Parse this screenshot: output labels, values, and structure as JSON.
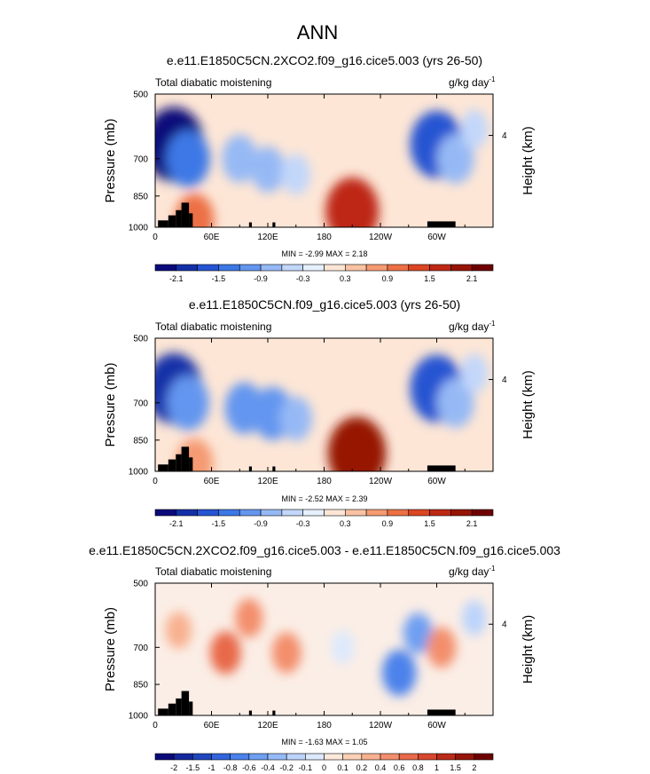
{
  "figure": {
    "title": "ANN"
  },
  "chart_data": [
    {
      "type": "heatmap",
      "panel": "top",
      "title": "e.e11.E1850C5CN.2XCO2.f09_g16.cice5.003 (yrs 26-50)",
      "left_label": "Total diabatic moistening",
      "units": "g/kg day",
      "units_exp": "-1",
      "ylabel": "Pressure (mb)",
      "ylabel_right": "Height (km)",
      "y_ticks": [
        "500",
        "700",
        "850",
        "1000"
      ],
      "y_right_ticks": [
        "4"
      ],
      "x_ticks": [
        "0",
        "60E",
        "120E",
        "180",
        "120W",
        "60W"
      ],
      "minmax": "MIN =  -2.99  MAX =  2.18",
      "colorbar_labels": [
        "-2.1",
        "-1.5",
        "-0.9",
        "-0.3",
        "0.3",
        "0.9",
        "1.5",
        "2.1"
      ],
      "colorbar_colors": [
        "#0a0a7a",
        "#1430a8",
        "#2654d2",
        "#3c78e6",
        "#6496f0",
        "#96b9f5",
        "#c3d7fa",
        "#e6f0ff",
        "#fde6d6",
        "#f9c3a3",
        "#f59a72",
        "#ec7044",
        "#dc4623",
        "#be2814",
        "#961405",
        "#6e0000"
      ],
      "features": [
        {
          "lon": 20,
          "p": 650,
          "value": -2.4
        },
        {
          "lon": 35,
          "p": 700,
          "value": -1.4
        },
        {
          "lon": 42,
          "p": 960,
          "value": 1.1
        },
        {
          "lon": 90,
          "p": 700,
          "value": -0.9
        },
        {
          "lon": 120,
          "p": 740,
          "value": -0.8
        },
        {
          "lon": 150,
          "p": 760,
          "value": -0.5
        },
        {
          "lon": 210,
          "p": 920,
          "value": 2.0
        },
        {
          "lon": 300,
          "p": 650,
          "value": -2.0
        },
        {
          "lon": 320,
          "p": 700,
          "value": -1.0
        },
        {
          "lon": 340,
          "p": 600,
          "value": -0.4
        }
      ]
    },
    {
      "type": "heatmap",
      "panel": "middle",
      "title": "e.e11.E1850C5CN.f09_g16.cice5.003 (yrs 26-50)",
      "left_label": "Total diabatic moistening",
      "units": "g/kg day",
      "units_exp": "-1",
      "ylabel": "Pressure (mb)",
      "ylabel_right": "Height (km)",
      "y_ticks": [
        "500",
        "700",
        "850",
        "1000"
      ],
      "y_right_ticks": [
        "4"
      ],
      "x_ticks": [
        "0",
        "60E",
        "120E",
        "180",
        "120W",
        "60W"
      ],
      "minmax": "MIN =  -2.52  MAX =  2.39",
      "colorbar_labels": [
        "-2.1",
        "-1.5",
        "-0.9",
        "-0.3",
        "0.3",
        "0.9",
        "1.5",
        "2.1"
      ],
      "colorbar_colors": [
        "#0a0a7a",
        "#1430a8",
        "#2654d2",
        "#3c78e6",
        "#6496f0",
        "#96b9f5",
        "#c3d7fa",
        "#e6f0ff",
        "#fde6d6",
        "#f9c3a3",
        "#f59a72",
        "#ec7044",
        "#dc4623",
        "#be2814",
        "#961405",
        "#6e0000"
      ],
      "features": [
        {
          "lon": 20,
          "p": 650,
          "value": -2.2
        },
        {
          "lon": 35,
          "p": 700,
          "value": -1.3
        },
        {
          "lon": 42,
          "p": 960,
          "value": 1.0
        },
        {
          "lon": 95,
          "p": 720,
          "value": -1.1
        },
        {
          "lon": 125,
          "p": 740,
          "value": -1.2
        },
        {
          "lon": 150,
          "p": 760,
          "value": -0.7
        },
        {
          "lon": 215,
          "p": 910,
          "value": 2.3
        },
        {
          "lon": 300,
          "p": 650,
          "value": -2.0
        },
        {
          "lon": 320,
          "p": 700,
          "value": -1.0
        },
        {
          "lon": 340,
          "p": 600,
          "value": -0.4
        }
      ]
    },
    {
      "type": "heatmap",
      "panel": "bottom",
      "title": "e.e11.E1850C5CN.2XCO2.f09_g16.cice5.003 - e.e11.E1850C5CN.f09_g16.cice5.003",
      "left_label": "Total diabatic moistening",
      "units": "g/kg day",
      "units_exp": "-1",
      "ylabel": "Pressure (mb)",
      "ylabel_right": "Height (km)",
      "y_ticks": [
        "500",
        "700",
        "850",
        "1000"
      ],
      "y_right_ticks": [
        "4"
      ],
      "x_ticks": [
        "0",
        "60E",
        "120E",
        "180",
        "120W",
        "60W"
      ],
      "minmax": "MIN =  -1.63  MAX =  1.05",
      "colorbar_labels": [
        "-2",
        "-1.5",
        "-1",
        "-0.8",
        "-0.6",
        "-0.4",
        "-0.2",
        "-0.1",
        "0",
        "0.1",
        "0.2",
        "0.4",
        "0.6",
        "0.8",
        "1",
        "1.5",
        "2"
      ],
      "colorbar_colors": [
        "#0a0a7a",
        "#14289c",
        "#1e46be",
        "#3264dc",
        "#4b82eb",
        "#6e9ff2",
        "#96bbf7",
        "#bcd4fb",
        "#dde9fd",
        "#fde9dc",
        "#fbd0b6",
        "#f8b190",
        "#f38e6c",
        "#e8694a",
        "#d8472e",
        "#bc2a18",
        "#961408",
        "#6e0000"
      ],
      "features": [
        {
          "lon": 25,
          "p": 640,
          "value": 0.3
        },
        {
          "lon": 75,
          "p": 720,
          "value": 0.6
        },
        {
          "lon": 100,
          "p": 600,
          "value": 0.4
        },
        {
          "lon": 140,
          "p": 720,
          "value": 0.5
        },
        {
          "lon": 200,
          "p": 700,
          "value": -0.1
        },
        {
          "lon": 260,
          "p": 800,
          "value": -0.8
        },
        {
          "lon": 280,
          "p": 650,
          "value": -0.5
        },
        {
          "lon": 305,
          "p": 700,
          "value": 0.5
        },
        {
          "lon": 340,
          "p": 600,
          "value": -0.2
        }
      ]
    }
  ]
}
